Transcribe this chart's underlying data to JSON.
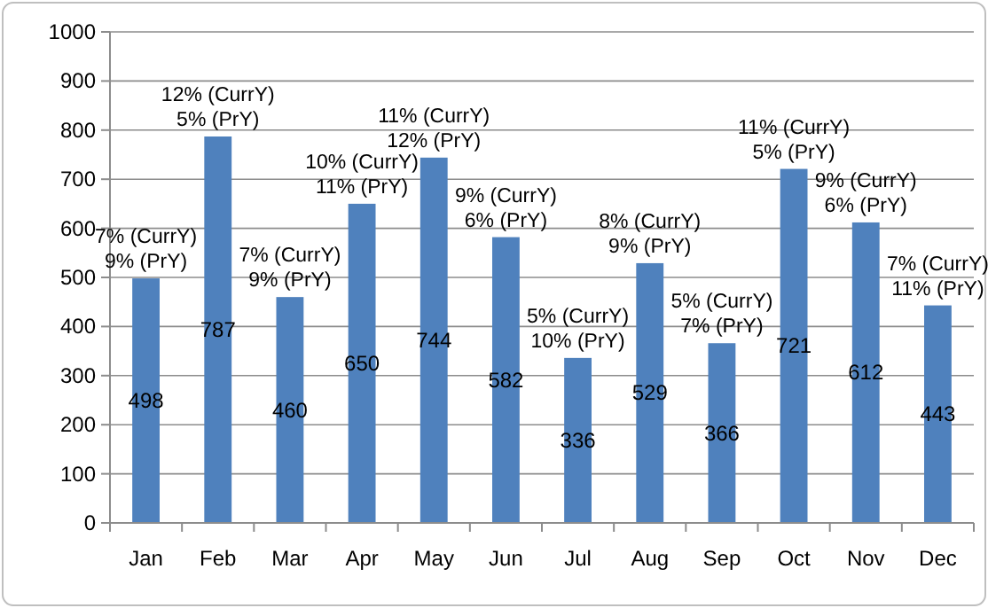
{
  "chart_data": {
    "type": "bar",
    "categories": [
      "Jan",
      "Feb",
      "Mar",
      "Apr",
      "May",
      "Jun",
      "Jul",
      "Aug",
      "Sep",
      "Oct",
      "Nov",
      "Dec"
    ],
    "values": [
      498,
      787,
      460,
      650,
      744,
      582,
      336,
      529,
      366,
      721,
      612,
      443
    ],
    "color": "#4f81bd",
    "data_labels": true,
    "ylim": [
      0,
      1000
    ],
    "yticks": [
      0,
      100,
      200,
      300,
      400,
      500,
      600,
      700,
      800,
      900,
      1000
    ],
    "grid": "y",
    "annotations": [
      {
        "text": "7% (CurrY)\n9% (PrY)",
        "x": "Jan",
        "y": 498
      },
      {
        "text": "12% (CurrY)\n5% (PrY)",
        "x": "Feb",
        "y": 787
      },
      {
        "text": "7% (CurrY)\n9% (PrY)",
        "x": "Mar",
        "y": 460
      },
      {
        "text": "10% (CurrY)\n11% (PrY)",
        "x": "Apr",
        "y": 650
      },
      {
        "text": "11% (CurrY)\n12% (PrY)",
        "x": "May",
        "y": 744
      },
      {
        "text": "9% (CurrY)\n6% (PrY)",
        "x": "Jun",
        "y": 582
      },
      {
        "text": "5% (CurrY)\n10% (PrY)",
        "x": "Jul",
        "y": 336
      },
      {
        "text": "8% (CurrY)\n9% (PrY)",
        "x": "Aug",
        "y": 529
      },
      {
        "text": "5% (CurrY)\n7% (PrY)",
        "x": "Sep",
        "y": 366
      },
      {
        "text": "11% (CurrY)\n5% (PrY)",
        "x": "Oct",
        "y": 721
      },
      {
        "text": "9% (CurrY)\n6% (PrY)",
        "x": "Nov",
        "y": 612
      },
      {
        "text": "7% (CurrY)\n11% (PrY)",
        "x": "Dec",
        "y": 443
      }
    ]
  }
}
